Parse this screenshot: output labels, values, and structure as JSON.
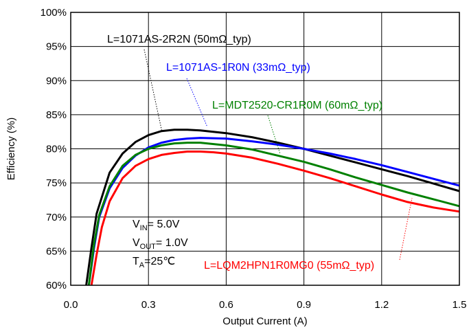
{
  "chart_data": {
    "type": "line",
    "xlabel": "Output Current (A)",
    "ylabel": "Efficiency (%)",
    "xlim": [
      0,
      1.5
    ],
    "ylim": [
      60,
      100
    ],
    "x_ticks": [
      "0.0",
      "0.3",
      "0.6",
      "0.9",
      "1.2",
      "1.5"
    ],
    "y_ticks": [
      "60%",
      "65%",
      "70%",
      "75%",
      "80%",
      "85%",
      "90%",
      "95%",
      "100%"
    ],
    "grid": true,
    "conditions": {
      "vin": {
        "main": "V",
        "sub": "IN",
        "value": "= 5.0V"
      },
      "vout": {
        "main": "V",
        "sub": "OUT",
        "value": "= 1.0V"
      },
      "ta": {
        "main": "T",
        "sub": "A",
        "value": "=25℃"
      }
    },
    "series": [
      {
        "name": "L=1071AS-2R2N (50mΩ_typ)",
        "color": "#000000",
        "x": [
          0.06,
          0.08,
          0.1,
          0.15,
          0.2,
          0.25,
          0.3,
          0.35,
          0.4,
          0.45,
          0.5,
          0.6,
          0.7,
          0.8,
          0.9,
          1.0,
          1.1,
          1.2,
          1.3,
          1.4,
          1.5
        ],
        "y": [
          60,
          65.5,
          70.5,
          76.5,
          79.3,
          81.0,
          82.0,
          82.6,
          82.8,
          82.8,
          82.7,
          82.3,
          81.7,
          80.9,
          80.0,
          79.0,
          78.0,
          77.0,
          76.0,
          74.9,
          73.8
        ]
      },
      {
        "name": "L=1071AS-1R0N (33mΩ_typ)",
        "color": "#0000ff",
        "x": [
          0.07,
          0.09,
          0.11,
          0.15,
          0.2,
          0.25,
          0.3,
          0.35,
          0.4,
          0.45,
          0.5,
          0.6,
          0.7,
          0.8,
          0.9,
          1.0,
          1.1,
          1.2,
          1.3,
          1.4,
          1.5
        ],
        "y": [
          60,
          65.5,
          70.0,
          74.2,
          77.2,
          79.0,
          80.2,
          80.9,
          81.3,
          81.5,
          81.6,
          81.5,
          81.1,
          80.6,
          80.0,
          79.3,
          78.5,
          77.6,
          76.6,
          75.6,
          74.6
        ]
      },
      {
        "name": "L=MDT2520-CR1R0M (60mΩ_typ)",
        "color": "#008000",
        "x": [
          0.07,
          0.09,
          0.11,
          0.15,
          0.2,
          0.25,
          0.3,
          0.35,
          0.4,
          0.45,
          0.5,
          0.6,
          0.7,
          0.8,
          0.9,
          1.0,
          1.1,
          1.2,
          1.3,
          1.4,
          1.5
        ],
        "y": [
          60,
          66.0,
          70.3,
          74.5,
          77.5,
          79.1,
          80.0,
          80.5,
          80.8,
          80.9,
          80.9,
          80.5,
          79.9,
          79.0,
          78.1,
          77.0,
          75.8,
          74.7,
          73.6,
          72.6,
          71.6
        ]
      },
      {
        "name": "L=LQM2HPN1R0MG0 (55mΩ_typ)",
        "color": "#ff0000",
        "x": [
          0.08,
          0.1,
          0.12,
          0.15,
          0.2,
          0.25,
          0.3,
          0.35,
          0.4,
          0.45,
          0.5,
          0.55,
          0.6,
          0.7,
          0.8,
          0.9,
          1.0,
          1.1,
          1.2,
          1.3,
          1.4,
          1.5
        ],
        "y": [
          60,
          64.5,
          68.5,
          72.3,
          75.7,
          77.5,
          78.5,
          79.1,
          79.4,
          79.6,
          79.6,
          79.5,
          79.3,
          78.7,
          77.8,
          76.8,
          75.7,
          74.5,
          73.3,
          72.2,
          71.4,
          70.8
        ]
      }
    ]
  }
}
